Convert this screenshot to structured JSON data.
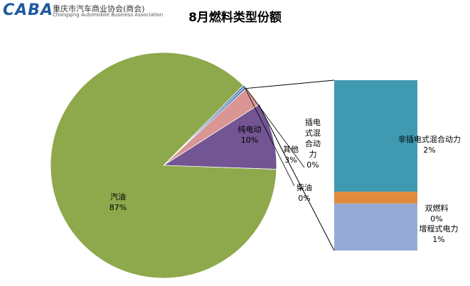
{
  "header": {
    "logo_mark": "CABA",
    "logo_cn": "重庆市汽车商业协会(商会)",
    "logo_en": "Chongqing Automobile Business Association"
  },
  "chart_data": {
    "type": "pie",
    "title": "8月燃料类型份额",
    "pie": {
      "slices": [
        {
          "name": "纯电动",
          "pct_label": "10%",
          "value": 9.6,
          "color": "#735593"
        },
        {
          "name": "其他",
          "pct_label": "3%",
          "value": 2.9,
          "color": "#d99694",
          "exploded_into_bar": true
        },
        {
          "name": "插电式混合动力",
          "pct_label": "0%",
          "value": 0.3,
          "color": "#3b6fb6"
        },
        {
          "name": "柴油",
          "pct_label": "0%",
          "value": 0.3,
          "color": "#4f81bd"
        },
        {
          "name": "汽油",
          "pct_label": "87%",
          "value": 86.9,
          "color": "#8ea84c"
        }
      ]
    },
    "breakdown_bar": {
      "of": "其他",
      "segments": [
        {
          "name": "非插电式混合动力",
          "pct_label": "2%",
          "value": 1.9,
          "color": "#3f9ab1"
        },
        {
          "name": "双燃料",
          "pct_label": "0%",
          "value": 0.2,
          "color": "#e08a3c"
        },
        {
          "name": "增程式电力",
          "pct_label": "1%",
          "value": 0.8,
          "color": "#95abd6"
        }
      ]
    }
  }
}
